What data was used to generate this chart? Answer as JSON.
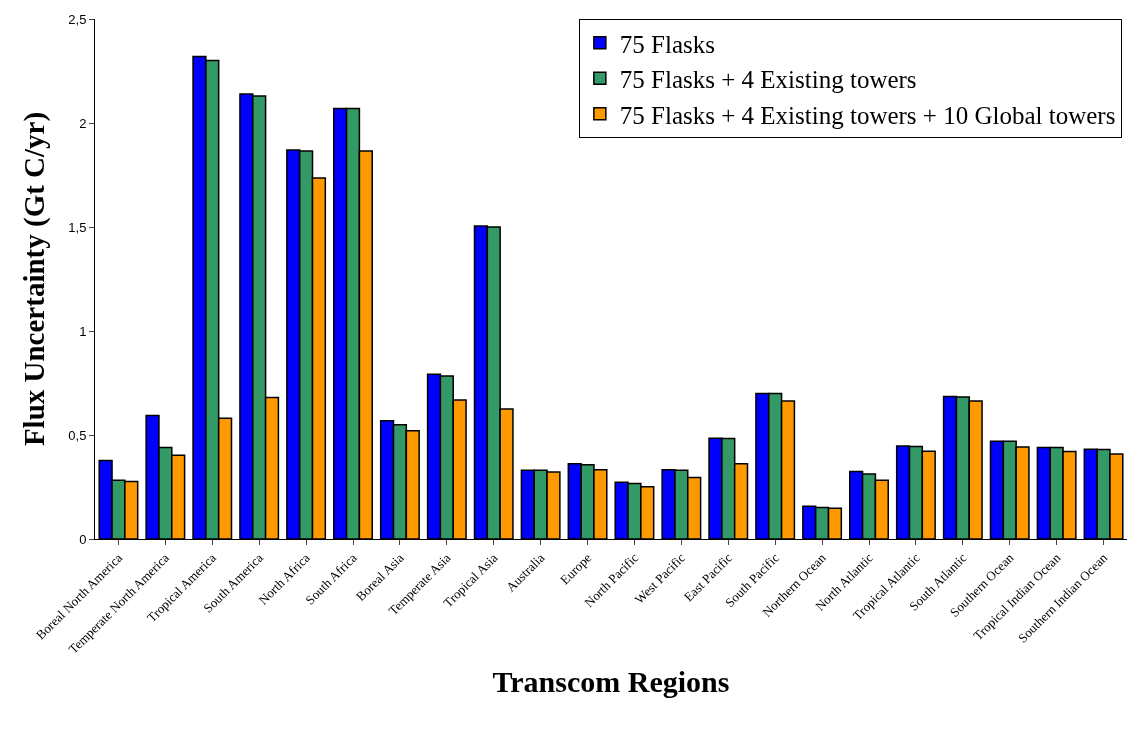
{
  "chart_data": {
    "type": "bar",
    "xlabel": "Transcom Regions",
    "ylabel": "Flux Uncertainty (Gt C/yr)",
    "categories": [
      "Boreal North America",
      "Temperate North America",
      "Tropical America",
      "South America",
      "North Africa",
      "South Africa",
      "Boreal Asia",
      "Temperate Asia",
      "Tropical Asia",
      "Australia",
      "Europe",
      "North Pacific",
      "West Pacific",
      "East Pacific",
      "South Pacific",
      "Northern Ocean",
      "North Atlantic",
      "Tropical Atlantic",
      "South Atlantic",
      "Southern Ocean",
      "Tropical Indian Ocean",
      "Southern Indian Ocean"
    ],
    "series": [
      {
        "name": "75 Flasks",
        "color": "#0000ff",
        "values": [
          0.378,
          0.594,
          2.32,
          2.14,
          1.87,
          2.07,
          0.568,
          0.792,
          1.505,
          0.33,
          0.362,
          0.273,
          0.333,
          0.484,
          0.699,
          0.158,
          0.324,
          0.447,
          0.685,
          0.47,
          0.44,
          0.431
        ]
      },
      {
        "name": "75 Flasks + 4 Existing towers",
        "color": "#339966",
        "values": [
          0.282,
          0.44,
          2.3,
          2.13,
          1.865,
          2.07,
          0.549,
          0.784,
          1.5,
          0.33,
          0.357,
          0.267,
          0.331,
          0.483,
          0.699,
          0.151,
          0.312,
          0.445,
          0.683,
          0.47,
          0.44,
          0.43
        ]
      },
      {
        "name": "75 Flasks + 4 Existing towers + 10 Global towers",
        "color": "#ff9900",
        "values": [
          0.276,
          0.403,
          0.581,
          0.68,
          1.735,
          1.865,
          0.52,
          0.668,
          0.625,
          0.322,
          0.333,
          0.251,
          0.296,
          0.362,
          0.664,
          0.148,
          0.283,
          0.422,
          0.664,
          0.442,
          0.421,
          0.409
        ]
      }
    ],
    "ylim": [
      0,
      2.5
    ],
    "yticks": [
      0,
      {
        "value": 0.5,
        "label": "0,5"
      },
      1,
      {
        "value": 1.5,
        "label": "1,5"
      },
      2,
      {
        "value": 2.5,
        "label": "2,5"
      }
    ],
    "legend": "top right"
  }
}
